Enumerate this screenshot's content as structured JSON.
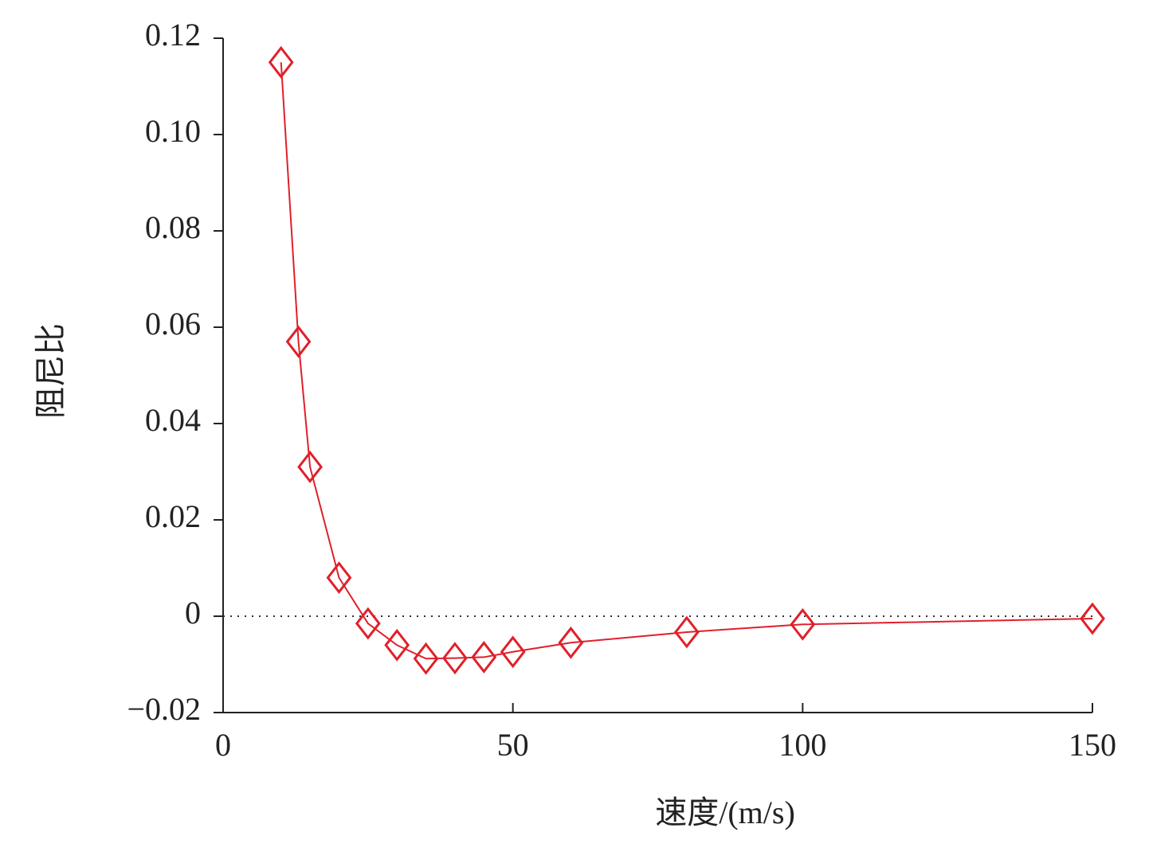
{
  "chart_data": {
    "type": "line",
    "x_label": "速度/(m/s)",
    "y_label": "阻尼比",
    "x": [
      10,
      13,
      15,
      20,
      25,
      30,
      35,
      40,
      45,
      50,
      60,
      80,
      100,
      150
    ],
    "series": [
      {
        "color": "#e0202a",
        "marker": "diamond",
        "values": [
          0.115,
          0.057,
          0.031,
          0.008,
          -0.0015,
          -0.006,
          -0.0088,
          -0.0087,
          -0.0085,
          -0.0074,
          -0.0055,
          -0.0033,
          -0.0017,
          -0.0005
        ]
      }
    ],
    "xlim": [
      0,
      150
    ],
    "xticks": [
      0,
      50,
      100,
      150
    ],
    "ylim": [
      -0.02,
      0.12
    ],
    "yticks": [
      {
        "value": -0.02,
        "label": "−0.02"
      },
      0,
      0.02,
      0.04,
      0.06,
      0.08,
      {
        "value": 0.1,
        "label": "0.10"
      },
      0.12
    ],
    "zero_line": true,
    "grid": false
  }
}
